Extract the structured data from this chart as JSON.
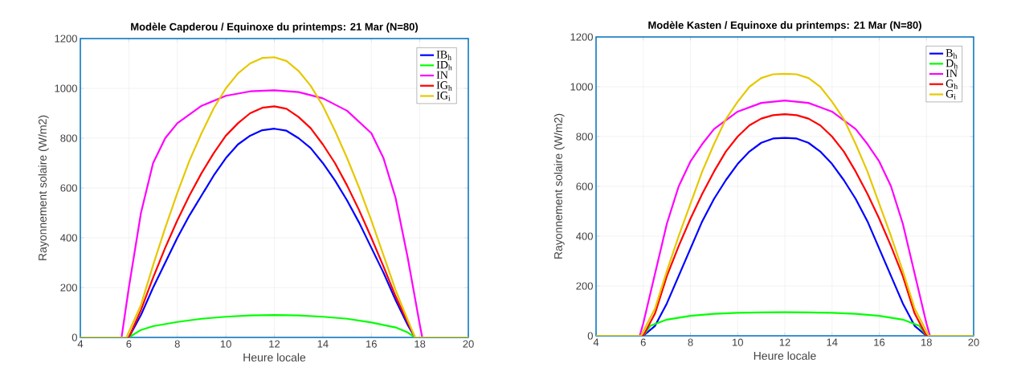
{
  "chart_data": [
    {
      "type": "line",
      "title": "Modèle Capderou / Equinoxe du printemps: 21 Mar (N=80)",
      "xlabel": "Heure locale",
      "ylabel": "Rayonnement solaire (W/m2)",
      "xlim": [
        4,
        20
      ],
      "ylim": [
        0,
        1200
      ],
      "xticks": [
        4,
        6,
        8,
        10,
        12,
        14,
        16,
        18,
        20
      ],
      "yticks": [
        0,
        200,
        400,
        600,
        800,
        1000,
        1200
      ],
      "grid": true,
      "legend": "top right",
      "series": [
        {
          "name": "IB$_{h}$",
          "color": "#0000ff",
          "x": [
            4,
            6,
            6.5,
            7,
            7.5,
            8,
            8.5,
            9,
            9.5,
            10,
            10.5,
            11,
            11.5,
            12,
            12.5,
            13,
            13.5,
            14,
            14.5,
            15,
            15.5,
            16,
            16.5,
            17,
            17.5,
            17.8,
            20
          ],
          "values": [
            0,
            0,
            90,
            200,
            300,
            400,
            490,
            570,
            650,
            720,
            775,
            810,
            832,
            838,
            830,
            800,
            760,
            700,
            630,
            550,
            460,
            360,
            260,
            150,
            50,
            0,
            0
          ]
        },
        {
          "name": "ID$_{h}$",
          "color": "#00ff00",
          "x": [
            4,
            6,
            6.5,
            7,
            8,
            9,
            10,
            11,
            12,
            13,
            14,
            15,
            16,
            17,
            17.5,
            17.8,
            20
          ],
          "values": [
            0,
            0,
            30,
            45,
            62,
            75,
            83,
            88,
            90,
            88,
            83,
            75,
            60,
            40,
            20,
            0,
            0
          ]
        },
        {
          "name": "IN",
          "color": "#ff00ff",
          "x": [
            4,
            5.7,
            6,
            6.5,
            7,
            7.5,
            8,
            9,
            10,
            11,
            12,
            13,
            14,
            15,
            16,
            16.5,
            17,
            17.5,
            18,
            18.1,
            20
          ],
          "values": [
            0,
            0,
            200,
            500,
            700,
            800,
            860,
            930,
            970,
            988,
            992,
            985,
            960,
            910,
            820,
            720,
            560,
            320,
            50,
            0,
            0
          ]
        },
        {
          "name": "IG$_{h}$",
          "color": "#ff0000",
          "x": [
            4,
            6,
            6.5,
            7,
            7.5,
            8,
            8.5,
            9,
            9.5,
            10,
            10.5,
            11,
            11.5,
            12,
            12.5,
            13,
            13.5,
            14,
            14.5,
            15,
            15.5,
            16,
            16.5,
            17,
            17.5,
            17.8,
            20
          ],
          "values": [
            0,
            0,
            110,
            240,
            360,
            470,
            570,
            660,
            740,
            810,
            860,
            900,
            922,
            928,
            918,
            885,
            840,
            775,
            700,
            610,
            510,
            400,
            285,
            165,
            60,
            0,
            0
          ]
        },
        {
          "name": "IG$_{i}$",
          "color": "#e6c800",
          "x": [
            4,
            5.9,
            6.5,
            7,
            7.5,
            8,
            8.5,
            9,
            9.5,
            10,
            10.5,
            11,
            11.5,
            12,
            12.5,
            13,
            13.5,
            14,
            14.5,
            15,
            15.5,
            16,
            16.5,
            17,
            17.5,
            17.8,
            20
          ],
          "values": [
            0,
            0,
            130,
            290,
            440,
            580,
            710,
            820,
            920,
            1000,
            1060,
            1100,
            1122,
            1125,
            1110,
            1070,
            1010,
            930,
            830,
            720,
            600,
            470,
            330,
            190,
            70,
            0,
            0
          ]
        }
      ]
    },
    {
      "type": "line",
      "title": "Modèle Kasten / Equinoxe du printemps: 21 Mar (N=80)",
      "xlabel": "Heure locale",
      "ylabel": "Rayonnement solaire (W/m2)",
      "xlim": [
        4,
        20
      ],
      "ylim": [
        0,
        1200
      ],
      "xticks": [
        4,
        6,
        8,
        10,
        12,
        14,
        16,
        18,
        20
      ],
      "yticks": [
        0,
        200,
        400,
        600,
        800,
        1000,
        1200
      ],
      "grid": true,
      "legend": "top right",
      "series": [
        {
          "name": "B$_{h}$",
          "color": "#0000ff",
          "x": [
            4,
            6,
            6.5,
            7,
            7.5,
            8,
            8.5,
            9,
            9.5,
            10,
            10.5,
            11,
            11.5,
            12,
            12.5,
            13,
            13.5,
            14,
            14.5,
            15,
            15.5,
            16,
            16.5,
            17,
            17.5,
            18,
            20
          ],
          "values": [
            0,
            0,
            40,
            130,
            240,
            350,
            460,
            550,
            625,
            690,
            740,
            775,
            792,
            795,
            792,
            775,
            740,
            690,
            625,
            550,
            460,
            350,
            240,
            130,
            40,
            0,
            0
          ]
        },
        {
          "name": "D$_{h}$",
          "color": "#00ff00",
          "x": [
            4,
            6,
            6.3,
            7,
            8,
            9,
            10,
            11,
            12,
            13,
            14,
            15,
            16,
            17,
            17.7,
            18,
            20
          ],
          "values": [
            0,
            0,
            40,
            65,
            80,
            88,
            92,
            94,
            95,
            94,
            92,
            88,
            80,
            65,
            40,
            0,
            0
          ]
        },
        {
          "name": "IN",
          "color": "#ff00ff",
          "x": [
            4,
            5.85,
            6,
            6.5,
            7,
            7.5,
            8,
            8.5,
            9,
            10,
            11,
            12,
            13,
            14,
            15,
            15.5,
            16,
            16.5,
            17,
            17.5,
            18,
            18.15,
            20
          ],
          "values": [
            0,
            0,
            50,
            250,
            450,
            600,
            700,
            770,
            830,
            900,
            935,
            945,
            935,
            900,
            830,
            770,
            700,
            600,
            450,
            250,
            50,
            0,
            0
          ]
        },
        {
          "name": "G$_{h}$",
          "color": "#ff0000",
          "x": [
            4,
            6,
            6.5,
            7,
            7.5,
            8,
            8.5,
            9,
            9.5,
            10,
            10.5,
            11,
            11.5,
            12,
            12.5,
            13,
            13.5,
            14,
            14.5,
            15,
            15.5,
            16,
            16.5,
            17,
            17.5,
            18,
            20
          ],
          "values": [
            0,
            0,
            90,
            240,
            360,
            470,
            570,
            660,
            740,
            800,
            845,
            872,
            886,
            890,
            886,
            872,
            845,
            800,
            740,
            660,
            570,
            470,
            360,
            240,
            90,
            0,
            0
          ]
        },
        {
          "name": "G$_{i}$",
          "color": "#e6c800",
          "x": [
            4,
            5.9,
            6.5,
            7,
            7.5,
            8,
            8.5,
            9,
            9.5,
            10,
            10.5,
            11,
            11.5,
            12,
            12.5,
            13,
            13.5,
            14,
            14.5,
            15,
            15.5,
            16,
            16.5,
            17,
            17.5,
            18.1,
            20
          ],
          "values": [
            0,
            0,
            110,
            260,
            400,
            530,
            660,
            770,
            870,
            940,
            1000,
            1035,
            1050,
            1052,
            1050,
            1035,
            1000,
            940,
            870,
            770,
            660,
            530,
            400,
            260,
            110,
            0,
            0
          ]
        }
      ]
    }
  ]
}
